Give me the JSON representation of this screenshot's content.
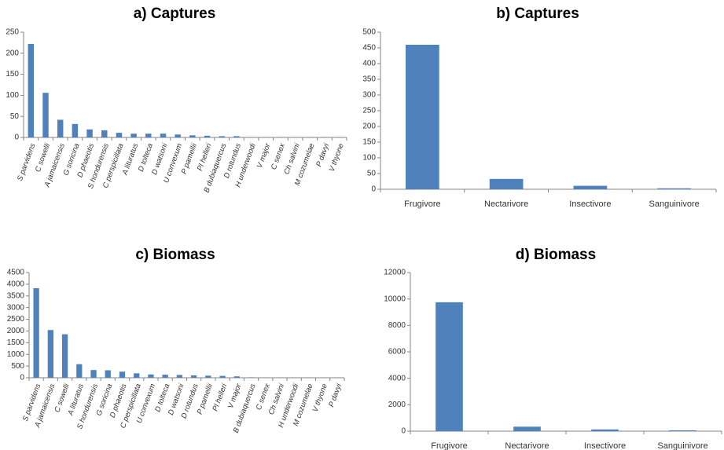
{
  "bar_color": "#4f81bd",
  "chart_data": [
    {
      "id": "a",
      "type": "bar",
      "title": "a) Captures",
      "categories": [
        "S parvidens",
        "C sowelli",
        "A jamaicensis",
        "G soricina",
        "D phaeotis",
        "S hondurensis",
        "C perspicillata",
        "A lituratus",
        "D tolteca",
        "D watsoni",
        "U convexum",
        "P pamellii",
        "Pl helleri",
        "B dubiaquercus",
        "D rotundus",
        "H underwoodi",
        "V major",
        "C senex",
        "Ch salvini",
        "M cozumelae",
        "P davyi",
        "V thyone"
      ],
      "values": [
        222,
        106,
        42,
        32,
        19,
        17,
        11,
        9,
        9,
        9,
        7,
        5,
        4,
        3,
        3,
        1,
        1,
        1,
        1,
        1,
        1,
        1
      ],
      "ylim": [
        0,
        250
      ],
      "yticks": [
        "0",
        "50",
        "100",
        "150",
        "200",
        "250"
      ],
      "ytick_values": [
        0,
        50,
        100,
        150,
        200,
        250
      ],
      "xlabel": "",
      "ylabel": ""
    },
    {
      "id": "b",
      "type": "bar",
      "title": "b) Captures",
      "categories": [
        "Frugivore",
        "Nectarivore",
        "Insectivore",
        "Sanguinivore"
      ],
      "values": [
        460,
        33,
        11,
        3
      ],
      "ylim": [
        0,
        500
      ],
      "yticks": [
        "0",
        "50",
        "100",
        "150",
        "200",
        "250",
        "300",
        "350",
        "400",
        "450",
        "500"
      ],
      "ytick_values": [
        0,
        50,
        100,
        150,
        200,
        250,
        300,
        350,
        400,
        450,
        500
      ],
      "xlabel": "",
      "ylabel": ""
    },
    {
      "id": "c",
      "type": "bar",
      "title": "c) Biomass",
      "categories": [
        "S parvidens",
        "A jamaicensis",
        "C sowelli",
        "A lituratus",
        "S hondurensis",
        "G soricina",
        "D phaeotis",
        "C perspicillata",
        "U convexum",
        "D tolteca",
        "D watsoni",
        "D rotundus",
        "P pamellii",
        "Pl helleri",
        "V major",
        "B dubiaquercus",
        "C senex",
        "Ch salvini",
        "H underwoodi",
        "M cozumelae",
        "V thyone",
        "P davyi"
      ],
      "values": [
        3830,
        2040,
        1860,
        580,
        330,
        320,
        260,
        190,
        140,
        130,
        120,
        100,
        90,
        80,
        60,
        20,
        15,
        10,
        10,
        10,
        8,
        8
      ],
      "ylim": [
        0,
        4500
      ],
      "yticks": [
        "0",
        "500",
        "1000",
        "1500",
        "2000",
        "2500",
        "3000",
        "3500",
        "4000",
        "4500"
      ],
      "ytick_values": [
        0,
        500,
        1000,
        1500,
        2000,
        2500,
        3000,
        3500,
        4000,
        4500
      ],
      "xlabel": "",
      "ylabel": ""
    },
    {
      "id": "d",
      "type": "bar",
      "title": "d) Biomass",
      "categories": [
        "Frugivore",
        "Nectarivore",
        "Insectivore",
        "Sanguinivore"
      ],
      "values": [
        9750,
        340,
        130,
        60
      ],
      "ylim": [
        0,
        12000
      ],
      "yticks": [
        "0",
        "2000",
        "4000",
        "6000",
        "8000",
        "10000",
        "12000"
      ],
      "ytick_values": [
        0,
        2000,
        4000,
        6000,
        8000,
        10000,
        12000
      ],
      "xlabel": "",
      "ylabel": ""
    }
  ]
}
